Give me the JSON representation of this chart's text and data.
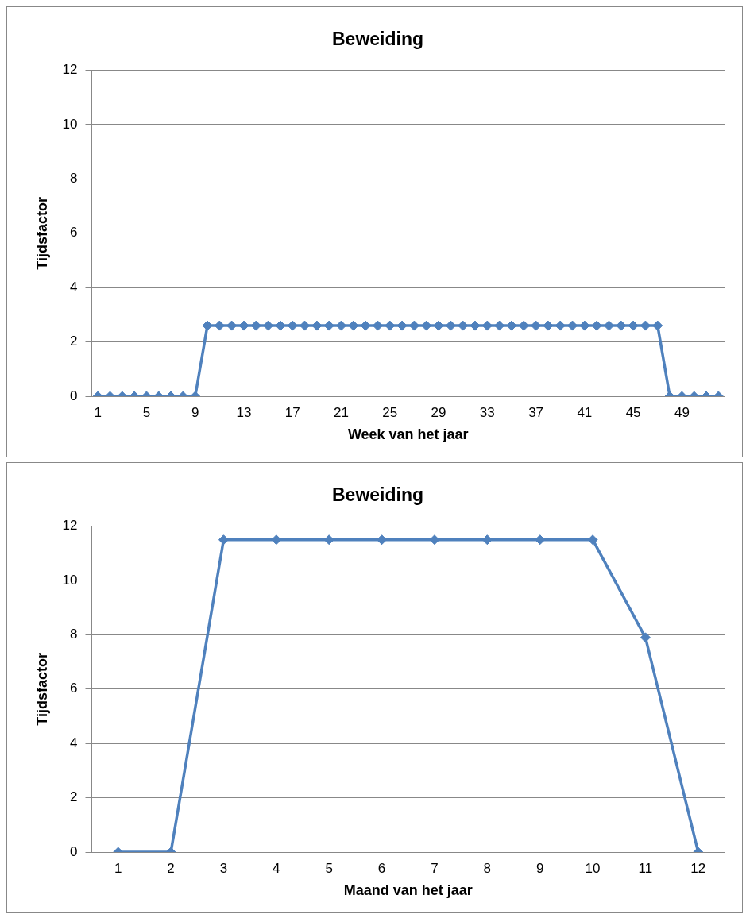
{
  "chart_data": [
    {
      "type": "line",
      "title": "Beweiding",
      "xlabel": "Week van het jaar",
      "ylabel": "Tijdsfactor",
      "categories": [
        "1",
        null,
        null,
        null,
        "5",
        null,
        null,
        null,
        "9",
        null,
        null,
        null,
        "13",
        null,
        null,
        null,
        "17",
        null,
        null,
        null,
        "21",
        null,
        null,
        null,
        "25",
        null,
        null,
        null,
        "29",
        null,
        null,
        null,
        "33",
        null,
        null,
        null,
        "37",
        null,
        null,
        null,
        "41",
        null,
        null,
        null,
        "45",
        null,
        null,
        null,
        "49",
        null,
        null,
        null
      ],
      "series": [
        {
          "color": "#4f81bd",
          "values": [
            0,
            0,
            0,
            0,
            0,
            0,
            0,
            0,
            0,
            2.6,
            2.6,
            2.6,
            2.6,
            2.6,
            2.6,
            2.6,
            2.6,
            2.6,
            2.6,
            2.6,
            2.6,
            2.6,
            2.6,
            2.6,
            2.6,
            2.6,
            2.6,
            2.6,
            2.6,
            2.6,
            2.6,
            2.6,
            2.6,
            2.6,
            2.6,
            2.6,
            2.6,
            2.6,
            2.6,
            2.6,
            2.6,
            2.6,
            2.6,
            2.6,
            2.6,
            2.6,
            2.6,
            0,
            0,
            0,
            0,
            0
          ]
        }
      ],
      "ylim": [
        0,
        12
      ],
      "yticks": [
        0,
        2,
        4,
        6,
        8,
        10,
        12
      ],
      "grid": "y",
      "legend": false,
      "marker": "diamond",
      "line_style": "solid"
    },
    {
      "type": "line",
      "title": "Beweiding",
      "xlabel": "Maand van het jaar",
      "ylabel": "Tijdsfactor",
      "categories": [
        "1",
        "2",
        "3",
        "4",
        "5",
        "6",
        "7",
        "8",
        "9",
        "10",
        "11",
        "12"
      ],
      "series": [
        {
          "color": "#4f81bd",
          "values": [
            0,
            0,
            11.5,
            11.5,
            11.5,
            11.5,
            11.5,
            11.5,
            11.5,
            11.5,
            7.9,
            0
          ]
        }
      ],
      "ylim": [
        0,
        12
      ],
      "yticks": [
        0,
        2,
        4,
        6,
        8,
        10,
        12
      ],
      "grid": "y",
      "legend": false,
      "marker": "diamond",
      "line_style": "solid"
    }
  ]
}
